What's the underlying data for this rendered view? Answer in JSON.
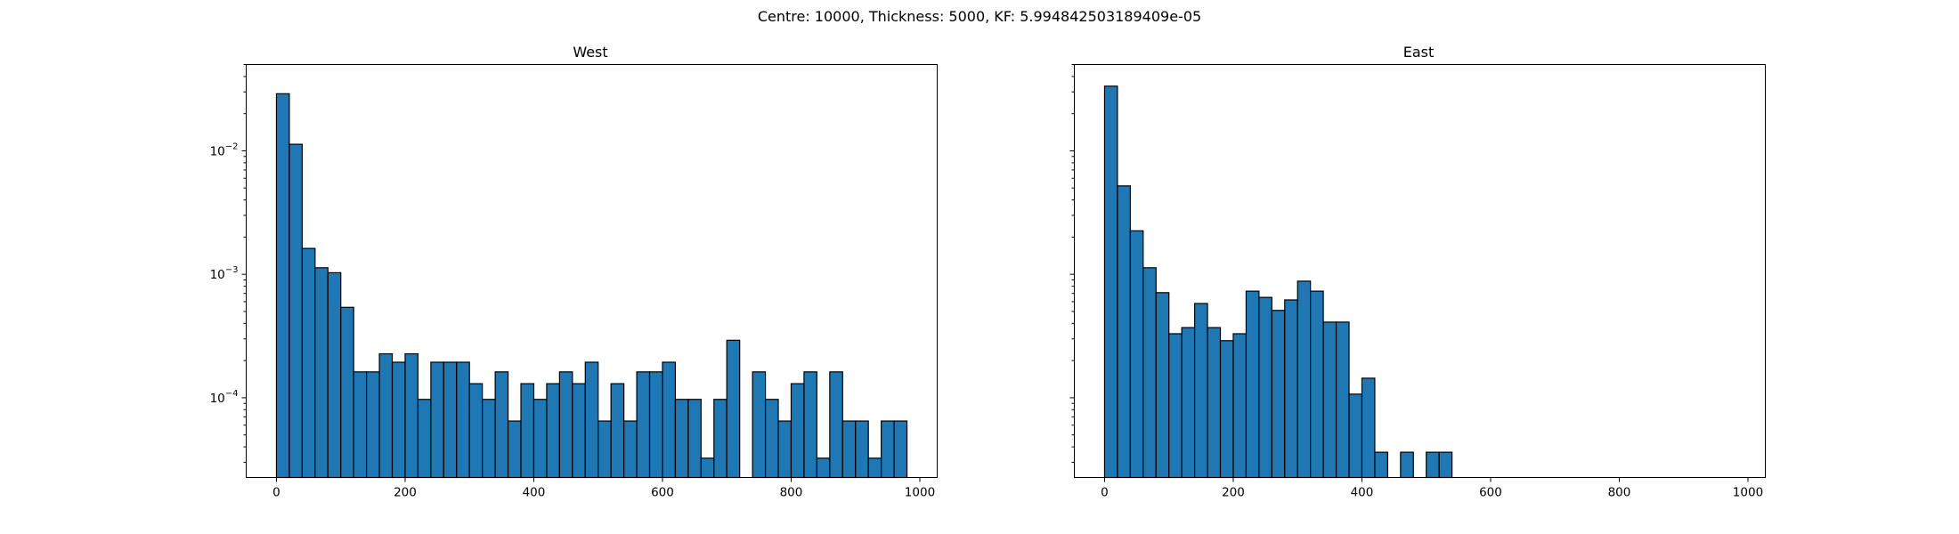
{
  "suptitle": "Centre: 10000, Thickness: 5000, KF: 5.994842503189409e-05",
  "chart_data": [
    {
      "type": "bar",
      "title": "West",
      "xlabel": "",
      "ylabel": "",
      "y_scale": "log",
      "bin_width": 20,
      "x": [
        0,
        20,
        40,
        60,
        80,
        100,
        120,
        140,
        160,
        180,
        200,
        220,
        240,
        260,
        280,
        300,
        320,
        340,
        360,
        380,
        400,
        420,
        440,
        460,
        480,
        500,
        520,
        540,
        560,
        580,
        600,
        620,
        640,
        660,
        680,
        700,
        720,
        740,
        760,
        780,
        800,
        820,
        840,
        860,
        880,
        900,
        920,
        940,
        960
      ],
      "values": [
        0.029,
        0.0113,
        0.00162,
        0.00113,
        0.00103,
        0.00054,
        0.000162,
        0.000162,
        0.000227,
        0.000194,
        0.000227,
        9.7e-05,
        0.000194,
        0.000194,
        0.000194,
        0.00013,
        9.7e-05,
        0.000162,
        6.48e-05,
        0.00013,
        9.7e-05,
        0.00013,
        0.000162,
        0.00013,
        0.000194,
        6.48e-05,
        0.00013,
        6.48e-05,
        0.000162,
        0.000162,
        0.000194,
        9.7e-05,
        9.7e-05,
        3.24e-05,
        9.7e-05,
        0.000292,
        0,
        0.000162,
        9.7e-05,
        6.48e-05,
        0.00013,
        0.000162,
        3.24e-05,
        0.000162,
        6.48e-05,
        6.48e-05,
        3.24e-05,
        6.48e-05,
        6.48e-05
      ],
      "xlim": [
        -47,
        1027
      ],
      "ylim": [
        2.26e-05,
        0.05
      ],
      "x_ticks": [
        {
          "value": 0,
          "label": "0"
        },
        {
          "value": 200,
          "label": "200"
        },
        {
          "value": 400,
          "label": "400"
        },
        {
          "value": 600,
          "label": "600"
        },
        {
          "value": 800,
          "label": "800"
        },
        {
          "value": 1000,
          "label": "1000"
        }
      ],
      "y_ticks": [
        {
          "value": 0.0001,
          "base": "10",
          "exp": "−4"
        },
        {
          "value": 0.001,
          "base": "10",
          "exp": "−3"
        },
        {
          "value": 0.01,
          "base": "10",
          "exp": "−2"
        }
      ],
      "grid": false,
      "colors": {
        "bar": "#1f77b4",
        "edge": "#000000"
      }
    },
    {
      "type": "bar",
      "title": "East",
      "xlabel": "",
      "ylabel": "",
      "y_scale": "log",
      "bin_width": 20,
      "x": [
        0,
        20,
        40,
        60,
        80,
        100,
        120,
        140,
        160,
        180,
        200,
        220,
        240,
        260,
        280,
        300,
        320,
        340,
        360,
        380,
        400,
        420,
        440,
        460,
        480,
        500,
        520,
        540,
        560,
        580,
        600,
        620,
        640,
        660,
        680,
        700,
        720,
        740,
        760,
        780,
        800,
        820,
        840,
        860,
        880,
        900,
        920,
        940,
        960
      ],
      "values": [
        0.0334,
        0.0052,
        0.00225,
        0.00113,
        0.00071,
        0.00033,
        0.00037,
        0.00058,
        0.00037,
        0.00029,
        0.00033,
        0.00073,
        0.00065,
        0.00051,
        0.00062,
        0.00088,
        0.00073,
        0.00041,
        0.00041,
        0.000107,
        0.000144,
        3.62e-05,
        0,
        3.62e-05,
        0,
        3.62e-05,
        3.62e-05,
        0,
        0,
        0,
        0,
        0,
        0,
        0,
        0,
        0,
        0,
        0,
        0,
        0,
        0,
        0,
        0,
        0,
        0,
        0,
        0,
        0,
        0
      ],
      "xlim": [
        -47,
        1027
      ],
      "ylim": [
        2.26e-05,
        0.05
      ],
      "x_ticks": [
        {
          "value": 0,
          "label": "0"
        },
        {
          "value": 200,
          "label": "200"
        },
        {
          "value": 400,
          "label": "400"
        },
        {
          "value": 600,
          "label": "600"
        },
        {
          "value": 800,
          "label": "800"
        },
        {
          "value": 1000,
          "label": "1000"
        }
      ],
      "y_ticks": [],
      "grid": false,
      "colors": {
        "bar": "#1f77b4",
        "edge": "#000000"
      }
    }
  ]
}
